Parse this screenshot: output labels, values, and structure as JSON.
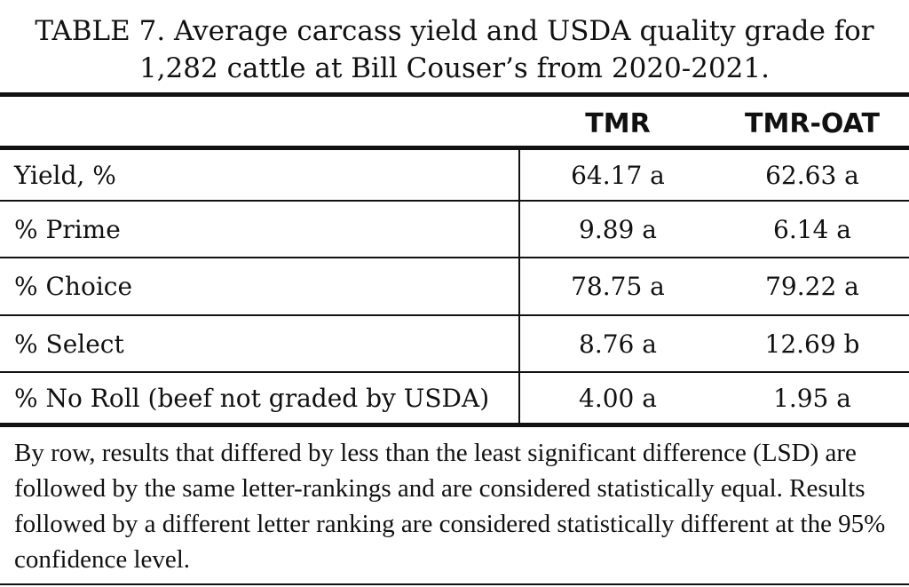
{
  "title": {
    "line1": "TABLE 7.  Average carcass yield and USDA quality grade for",
    "line2": "1,282 cattle at Bill Couser’s from 2020-2021."
  },
  "columns": [
    "TMR",
    "TMR-OAT"
  ],
  "rows": [
    {
      "label": "Yield, %",
      "tmr": "64.17 a",
      "tmr_oat": "62.63 a"
    },
    {
      "label": "% Prime",
      "tmr": "9.89 a",
      "tmr_oat": "6.14 a"
    },
    {
      "label": "% Choice",
      "tmr": "78.75 a",
      "tmr_oat": "79.22 a"
    },
    {
      "label": "% Select",
      "tmr": "8.76 a",
      "tmr_oat": "12.69 b"
    },
    {
      "label": "% No Roll (beef not graded by USDA)",
      "tmr": "4.00 a",
      "tmr_oat": "1.95 a"
    }
  ],
  "footnote": "By row, results that differed by less than the least significant difference (LSD) are followed by the same letter-rankings and are considered statistically equal. Results followed by a different letter ranking are considered statistically different at the 95% confidence level."
}
